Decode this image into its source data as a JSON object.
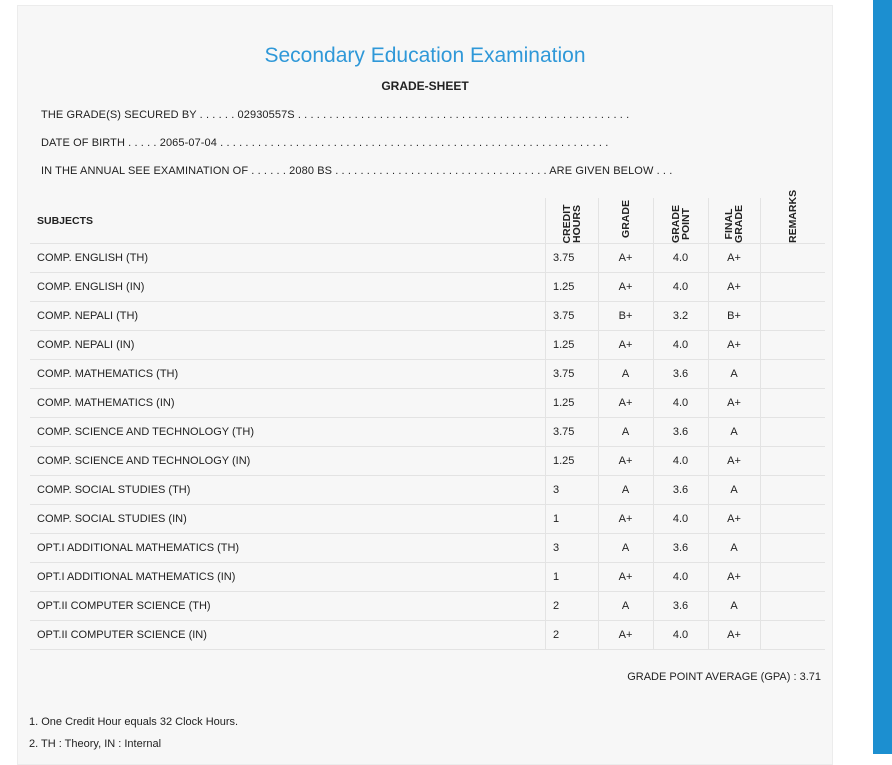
{
  "header": {
    "title": "Secondary Education Examination",
    "subtitle": "GRADE-SHEET"
  },
  "info": [
    "THE GRADE(S) SECURED BY . . . . . . 02930557S . . . . . . . . . . . . . . . . . . . . . . . . . . . . . . . . . . . . . . . . . . . . . . . . . . . . .",
    "DATE OF BIRTH . . . . . 2065-07-04 . . . . . . . . . . . . . . . . . . . . . . . . . . . . . . . . . . . . . . . . . . . . . . . . . . . . . . . . . . . . . .",
    "IN THE ANNUAL SEE EXAMINATION OF . . . . . . 2080 BS . . . . . . . . . . . . . . . . . . . . . . . . . . . . . . . . . . ARE GIVEN BELOW . . ."
  ],
  "table": {
    "columns": [
      "SUBJECTS",
      "CREDIT HOURS",
      "GRADE",
      "GRADE POINT",
      "FINAL GRADE",
      "REMARKS"
    ],
    "rows": [
      [
        "COMP. ENGLISH (TH)",
        "3.75",
        "A+",
        "4.0",
        "A+"
      ],
      [
        "COMP. ENGLISH (IN)",
        "1.25",
        "A+",
        "4.0",
        "A+"
      ],
      [
        "COMP. NEPALI (TH)",
        "3.75",
        "B+",
        "3.2",
        "B+"
      ],
      [
        "COMP. NEPALI (IN)",
        "1.25",
        "A+",
        "4.0",
        "A+"
      ],
      [
        "COMP. MATHEMATICS (TH)",
        "3.75",
        "A",
        "3.6",
        "A"
      ],
      [
        "COMP. MATHEMATICS (IN)",
        "1.25",
        "A+",
        "4.0",
        "A+"
      ],
      [
        "COMP. SCIENCE AND TECHNOLOGY (TH)",
        "3.75",
        "A",
        "3.6",
        "A"
      ],
      [
        "COMP. SCIENCE AND TECHNOLOGY (IN)",
        "1.25",
        "A+",
        "4.0",
        "A+"
      ],
      [
        "COMP. SOCIAL STUDIES (TH)",
        "3",
        "A",
        "3.6",
        "A"
      ],
      [
        "COMP. SOCIAL STUDIES (IN)",
        "1",
        "A+",
        "4.0",
        "A+"
      ],
      [
        "OPT.I ADDITIONAL MATHEMATICS (TH)",
        "3",
        "A",
        "3.6",
        "A"
      ],
      [
        "OPT.I ADDITIONAL MATHEMATICS (IN)",
        "1",
        "A+",
        "4.0",
        "A+"
      ],
      [
        "OPT.II COMPUTER SCIENCE (TH)",
        "2",
        "A",
        "3.6",
        "A"
      ],
      [
        "OPT.II COMPUTER SCIENCE (IN)",
        "2",
        "A+",
        "4.0",
        "A+"
      ]
    ]
  },
  "gpa": "GRADE POINT AVERAGE (GPA) : 3.71",
  "footnotes": [
    "1. One Credit Hour equals 32 Clock Hours.",
    "2. TH : Theory, IN : Internal"
  ]
}
